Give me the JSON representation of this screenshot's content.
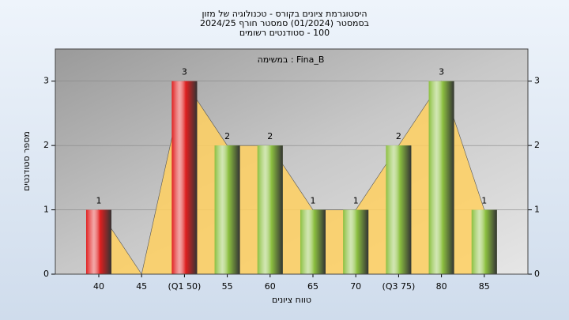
{
  "chart_data": {
    "type": "bar",
    "title": [
      "היסטוגרמת ציונים בקורס - טכנולוגיה של מזון",
      "בסמסטר (01/2024) סמסטר חורף 2024/25",
      "100 - סטודנטים רשומים"
    ],
    "subtitle": "Fina_B : במשימה",
    "x_label": "טווח ציונים",
    "y_label": "מספר סטודנטים",
    "categories": [
      "40",
      "45",
      "(Q1 50)",
      "55",
      "60",
      "65",
      "70",
      "(Q3 75)",
      "80",
      "85"
    ],
    "values": [
      1,
      0,
      3,
      2,
      2,
      1,
      1,
      2,
      3,
      1
    ],
    "colors": [
      "#e02020",
      "#e02020",
      "#e02020",
      "#8cc040",
      "#8cc040",
      "#8cc040",
      "#8cc040",
      "#8cc040",
      "#8cc040",
      "#8cc040"
    ],
    "ylim": [
      0,
      3.5
    ],
    "yticks": [
      0,
      1,
      2,
      3
    ],
    "grid": true
  }
}
